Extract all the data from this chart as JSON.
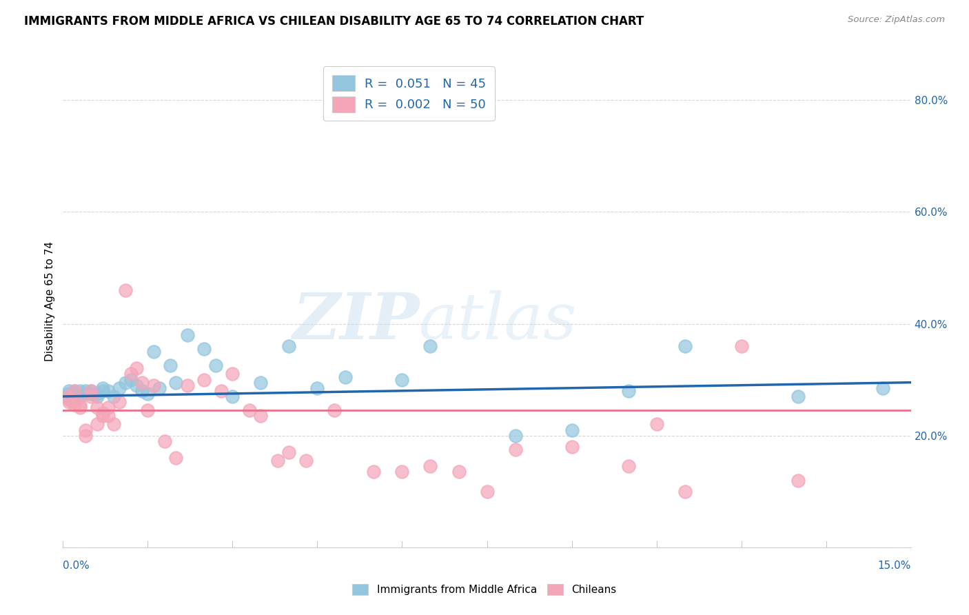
{
  "title": "IMMIGRANTS FROM MIDDLE AFRICA VS CHILEAN DISABILITY AGE 65 TO 74 CORRELATION CHART",
  "source": "Source: ZipAtlas.com",
  "ylabel": "Disability Age 65 to 74",
  "xlim": [
    0.0,
    0.15
  ],
  "ylim": [
    0.0,
    0.88
  ],
  "blue_color": "#92c5de",
  "pink_color": "#f4a5b8",
  "blue_line_color": "#2166ac",
  "pink_line_color": "#e8718a",
  "watermark_zip": "ZIP",
  "watermark_atlas": "atlas",
  "legend_label1": "R =  0.051   N = 45",
  "legend_label2": "R =  0.002   N = 50",
  "blue_scatter_x": [
    0.001,
    0.001,
    0.001,
    0.001,
    0.002,
    0.002,
    0.002,
    0.003,
    0.003,
    0.004,
    0.004,
    0.005,
    0.005,
    0.006,
    0.006,
    0.007,
    0.007,
    0.008,
    0.009,
    0.01,
    0.011,
    0.012,
    0.013,
    0.014,
    0.015,
    0.016,
    0.017,
    0.019,
    0.02,
    0.022,
    0.025,
    0.027,
    0.03,
    0.035,
    0.04,
    0.045,
    0.05,
    0.06,
    0.065,
    0.08,
    0.09,
    0.1,
    0.11,
    0.13,
    0.145
  ],
  "blue_scatter_y": [
    0.265,
    0.27,
    0.275,
    0.28,
    0.27,
    0.275,
    0.28,
    0.27,
    0.28,
    0.275,
    0.28,
    0.275,
    0.28,
    0.27,
    0.275,
    0.28,
    0.285,
    0.28,
    0.27,
    0.285,
    0.295,
    0.3,
    0.29,
    0.28,
    0.275,
    0.35,
    0.285,
    0.325,
    0.295,
    0.38,
    0.355,
    0.325,
    0.27,
    0.295,
    0.36,
    0.285,
    0.305,
    0.3,
    0.36,
    0.2,
    0.21,
    0.28,
    0.36,
    0.27,
    0.285
  ],
  "pink_scatter_x": [
    0.001,
    0.001,
    0.001,
    0.002,
    0.002,
    0.002,
    0.003,
    0.003,
    0.004,
    0.004,
    0.005,
    0.005,
    0.006,
    0.006,
    0.007,
    0.007,
    0.008,
    0.008,
    0.009,
    0.01,
    0.011,
    0.012,
    0.013,
    0.014,
    0.015,
    0.016,
    0.018,
    0.02,
    0.022,
    0.025,
    0.028,
    0.03,
    0.033,
    0.035,
    0.038,
    0.04,
    0.043,
    0.048,
    0.055,
    0.06,
    0.065,
    0.07,
    0.075,
    0.08,
    0.09,
    0.1,
    0.105,
    0.11,
    0.12,
    0.13
  ],
  "pink_scatter_y": [
    0.26,
    0.265,
    0.27,
    0.255,
    0.26,
    0.28,
    0.25,
    0.255,
    0.2,
    0.21,
    0.27,
    0.28,
    0.22,
    0.25,
    0.24,
    0.235,
    0.235,
    0.25,
    0.22,
    0.26,
    0.46,
    0.31,
    0.32,
    0.295,
    0.245,
    0.29,
    0.19,
    0.16,
    0.29,
    0.3,
    0.28,
    0.31,
    0.245,
    0.235,
    0.155,
    0.17,
    0.155,
    0.245,
    0.135,
    0.135,
    0.145,
    0.135,
    0.1,
    0.175,
    0.18,
    0.145,
    0.22,
    0.1,
    0.36,
    0.12
  ],
  "blue_line_x0": 0.0,
  "blue_line_y0": 0.27,
  "blue_line_x1": 0.15,
  "blue_line_y1": 0.295,
  "pink_line_x0": 0.0,
  "pink_line_y0": 0.245,
  "pink_line_x1": 0.15,
  "pink_line_y1": 0.245
}
